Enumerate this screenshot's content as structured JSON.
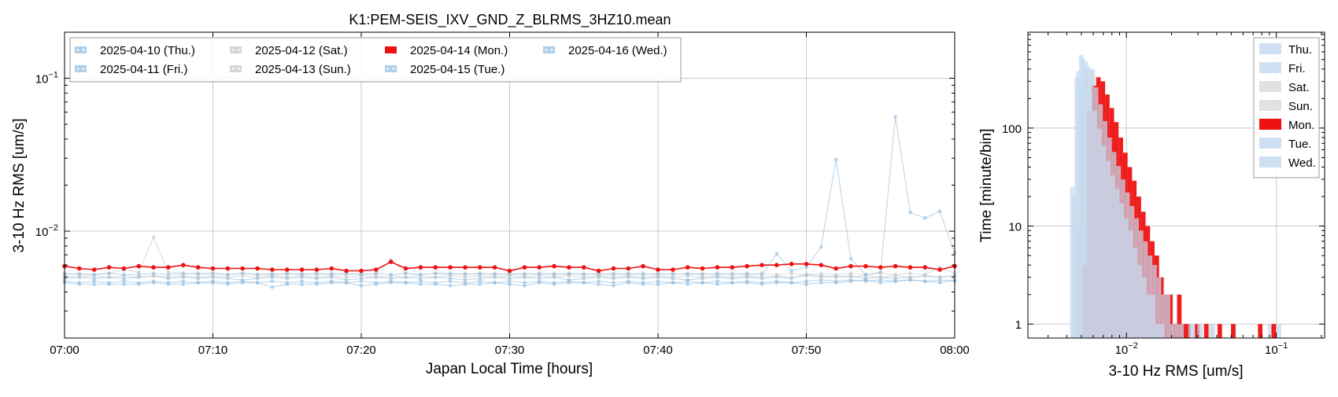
{
  "chart_data": [
    {
      "type": "line",
      "title": "K1:PEM-SEIS_IXV_GND_Z_BLRMS_3HZ10.mean",
      "xlabel": "Japan Local Time [hours]",
      "ylabel": "3-10 Hz RMS [um/s]",
      "yscale": "log",
      "xlim": [
        "07:00",
        "08:00"
      ],
      "ylim": [
        0.002,
        0.2
      ],
      "x_ticks": [
        "07:00",
        "07:10",
        "07:20",
        "07:30",
        "07:40",
        "07:50",
        "08:00"
      ],
      "y_ticks": [
        {
          "value": 0.1,
          "base": "10",
          "exp": "−1"
        },
        {
          "value": 0.01,
          "base": "10",
          "exp": "−2"
        }
      ],
      "grid": true,
      "legend": {
        "placement": "top-left",
        "columns": 4
      },
      "x_minutes": [
        0,
        1,
        2,
        3,
        4,
        5,
        6,
        7,
        8,
        9,
        10,
        11,
        12,
        13,
        14,
        15,
        16,
        17,
        18,
        19,
        20,
        21,
        22,
        23,
        24,
        25,
        26,
        27,
        28,
        29,
        30,
        31,
        32,
        33,
        34,
        35,
        36,
        37,
        38,
        39,
        40,
        41,
        42,
        43,
        44,
        45,
        46,
        47,
        48,
        49,
        50,
        51,
        52,
        53,
        54,
        55,
        56,
        57,
        58,
        59,
        60
      ],
      "series": [
        {
          "name": "2025-04-10 (Thu.)",
          "color": "#8fb9dc",
          "emphasis": false,
          "values": [
            0.0049,
            0.005,
            0.0049,
            0.005,
            0.0049,
            0.005,
            0.0051,
            0.0049,
            0.005,
            0.0049,
            0.005,
            0.0049,
            0.0048,
            0.0049,
            0.005,
            0.0049,
            0.005,
            0.0049,
            0.005,
            0.0048,
            0.0049,
            0.005,
            0.0049,
            0.005,
            0.0049,
            0.005,
            0.0049,
            0.0048,
            0.0049,
            0.005,
            0.0049,
            0.005,
            0.0049,
            0.005,
            0.0048,
            0.0049,
            0.005,
            0.0049,
            0.005,
            0.0049,
            0.005,
            0.0049,
            0.0048,
            0.0049,
            0.005,
            0.0049,
            0.005,
            0.0049,
            0.005,
            0.0049,
            0.0052,
            0.0051,
            0.005,
            0.0051,
            0.0049,
            0.005,
            0.0049,
            0.005,
            0.0051,
            0.005,
            0.0051
          ]
        },
        {
          "name": "2025-04-11 (Fri.)",
          "color": "#8fb9dc",
          "emphasis": false,
          "values": [
            0.0047,
            0.0046,
            0.0047,
            0.0046,
            0.0047,
            0.0046,
            0.0047,
            0.0046,
            0.0047,
            0.0046,
            0.0047,
            0.0046,
            0.0047,
            0.0046,
            0.0047,
            0.0046,
            0.0047,
            0.0046,
            0.0047,
            0.0046,
            0.0047,
            0.0046,
            0.0047,
            0.0046,
            0.0047,
            0.0046,
            0.0047,
            0.0046,
            0.0047,
            0.0046,
            0.0047,
            0.0046,
            0.0047,
            0.0046,
            0.0047,
            0.0046,
            0.0047,
            0.0046,
            0.0047,
            0.0046,
            0.0047,
            0.0046,
            0.0047,
            0.0046,
            0.0047,
            0.0046,
            0.0047,
            0.0046,
            0.0047,
            0.0046,
            0.0047,
            0.0048,
            0.0047,
            0.0048,
            0.0047,
            0.0048,
            0.0047,
            0.0048,
            0.0047,
            0.0048,
            0.0047
          ]
        },
        {
          "name": "2025-04-12 (Sat.)",
          "color": "#c4c4c4",
          "emphasis": false,
          "values": [
            0.0052,
            0.0053,
            0.0052,
            0.0053,
            0.0056,
            0.0054,
            0.0091,
            0.0054,
            0.0053,
            0.0052,
            0.0053,
            0.0052,
            0.0053,
            0.0052,
            0.0053,
            0.0052,
            0.0053,
            0.0052,
            0.0053,
            0.0052,
            0.0053,
            0.0052,
            0.0065,
            0.0053,
            0.0052,
            0.0053,
            0.0052,
            0.0053,
            0.0052,
            0.0053,
            0.0052,
            0.0053,
            0.0052,
            0.0053,
            0.0052,
            0.0053,
            0.0052,
            0.0053,
            0.0052,
            0.0053,
            0.0052,
            0.0053,
            0.0052,
            0.0053,
            0.0052,
            0.0053,
            0.0052,
            0.0053,
            0.0052,
            0.0053,
            0.0052,
            0.0053,
            0.0052,
            0.0053,
            0.0052,
            0.0053,
            0.0052,
            0.0053,
            0.0052,
            0.0058,
            0.0053
          ]
        },
        {
          "name": "2025-04-13 (Sun.)",
          "color": "#c4c4c4",
          "emphasis": false,
          "values": [
            0.0051,
            0.005,
            0.0051,
            0.005,
            0.0051,
            0.005,
            0.0051,
            0.005,
            0.0051,
            0.005,
            0.0051,
            0.005,
            0.0051,
            0.005,
            0.0051,
            0.005,
            0.0051,
            0.005,
            0.0051,
            0.005,
            0.0051,
            0.005,
            0.0051,
            0.005,
            0.0051,
            0.005,
            0.0051,
            0.005,
            0.0051,
            0.005,
            0.0051,
            0.005,
            0.0051,
            0.005,
            0.0051,
            0.005,
            0.0051,
            0.005,
            0.0051,
            0.005,
            0.0051,
            0.005,
            0.0051,
            0.005,
            0.0051,
            0.005,
            0.0051,
            0.005,
            0.0051,
            0.005,
            0.0051,
            0.005,
            0.0051,
            0.005,
            0.0051,
            0.005,
            0.0051,
            0.005,
            0.0051,
            0.005,
            0.0051
          ]
        },
        {
          "name": "2025-04-14 (Mon.)",
          "color": "#ee1111",
          "emphasis": true,
          "values": [
            0.0059,
            0.0057,
            0.0056,
            0.0058,
            0.0057,
            0.0059,
            0.0058,
            0.0058,
            0.006,
            0.0058,
            0.0057,
            0.0057,
            0.0057,
            0.0057,
            0.0056,
            0.0056,
            0.0056,
            0.0056,
            0.0057,
            0.0055,
            0.0055,
            0.0056,
            0.0063,
            0.0057,
            0.0058,
            0.0058,
            0.0058,
            0.0058,
            0.0058,
            0.0058,
            0.0055,
            0.0058,
            0.0058,
            0.0059,
            0.0058,
            0.0058,
            0.0055,
            0.0057,
            0.0057,
            0.0059,
            0.0056,
            0.0056,
            0.0058,
            0.0057,
            0.0058,
            0.0058,
            0.0059,
            0.006,
            0.006,
            0.0061,
            0.0061,
            0.006,
            0.0057,
            0.0059,
            0.0059,
            0.0058,
            0.0059,
            0.0058,
            0.0058,
            0.0056,
            0.0059
          ]
        },
        {
          "name": "2025-04-15 (Tue.)",
          "color": "#8fb9dc",
          "emphasis": false,
          "values": [
            0.0046,
            0.0045,
            0.0045,
            0.0045,
            0.0045,
            0.0045,
            0.0046,
            0.0045,
            0.0045,
            0.0046,
            0.0046,
            0.0045,
            0.0046,
            0.0046,
            0.0043,
            0.0045,
            0.0045,
            0.0045,
            0.0046,
            0.0046,
            0.0044,
            0.0045,
            0.0046,
            0.0046,
            0.0045,
            0.0045,
            0.0044,
            0.0045,
            0.0045,
            0.0046,
            0.0045,
            0.0044,
            0.0046,
            0.0045,
            0.0046,
            0.0046,
            0.0045,
            0.0044,
            0.0046,
            0.0045,
            0.0045,
            0.0046,
            0.0045,
            0.0046,
            0.0045,
            0.0046,
            0.0046,
            0.0045,
            0.0046,
            0.0046,
            0.0045,
            0.0046,
            0.0046,
            0.0047,
            0.0048,
            0.0046,
            0.0047,
            0.0048,
            0.0047,
            0.0046,
            0.0048
          ]
        },
        {
          "name": "2025-04-16 (Wed.)",
          "color": "#8fb9dc",
          "emphasis": false,
          "values": [
            0.0053,
            0.0052,
            0.0052,
            0.0053,
            0.0052,
            0.0052,
            0.0053,
            0.0052,
            0.0053,
            0.0053,
            0.0053,
            0.0052,
            0.0053,
            0.0052,
            0.0052,
            0.0053,
            0.0052,
            0.0053,
            0.0052,
            0.0053,
            0.0052,
            0.0053,
            0.0052,
            0.0053,
            0.0052,
            0.0053,
            0.0053,
            0.0052,
            0.0053,
            0.0052,
            0.0053,
            0.0052,
            0.0053,
            0.0052,
            0.0053,
            0.0052,
            0.0053,
            0.0052,
            0.0053,
            0.0052,
            0.0053,
            0.0052,
            0.0053,
            0.0052,
            0.0053,
            0.0052,
            0.0053,
            0.0052,
            0.0071,
            0.0055,
            0.0058,
            0.0079,
            0.0295,
            0.0066,
            0.0052,
            0.0054,
            0.056,
            0.0133,
            0.0122,
            0.0135,
            0.0072
          ]
        }
      ]
    },
    {
      "type": "histogram",
      "title": "",
      "xlabel": "3-10 Hz RMS [um/s]",
      "ylabel": "Time [minute/bin]",
      "xscale": "log",
      "yscale": "log",
      "xlim": [
        0.0022,
        0.21
      ],
      "ylim": [
        0.72,
        950
      ],
      "x_ticks": [
        {
          "value": 0.01,
          "base": "10",
          "exp": "−2"
        },
        {
          "value": 0.1,
          "base": "10",
          "exp": "−1"
        }
      ],
      "y_ticks": [
        {
          "value": 1,
          "label": "1"
        },
        {
          "value": 10,
          "label": "10"
        },
        {
          "value": 100,
          "label": "100"
        }
      ],
      "grid": true,
      "legend": {
        "placement": "top-right"
      },
      "bin_width_log10": 0.03,
      "series": [
        {
          "name": "Thu.",
          "color": "#c6dbee",
          "bin_start": 0.0045,
          "counts": [
            12,
            270,
            480,
            410,
            260,
            170,
            118,
            82,
            56,
            40,
            29,
            21,
            16,
            12,
            9,
            7,
            5,
            4,
            3,
            3,
            2,
            2,
            1,
            1,
            1,
            0,
            1,
            0,
            0,
            0,
            1,
            0,
            0,
            0,
            0,
            1,
            0,
            0,
            0,
            0,
            0,
            0,
            0,
            1,
            0,
            1
          ]
        },
        {
          "name": "Fri.",
          "color": "#c6dbee",
          "bin_start": 0.0043,
          "counts": [
            20,
            380,
            520,
            350,
            210,
            140,
            92,
            63,
            45,
            32,
            23,
            17,
            13,
            10,
            7,
            5,
            4,
            3,
            2,
            2,
            1,
            1,
            1,
            0,
            1,
            0,
            0,
            1
          ]
        },
        {
          "name": "Sat.",
          "color": "#dcdcdc",
          "bin_start": 0.0047,
          "counts": [
            8,
            150,
            330,
            400,
            280,
            190,
            125,
            86,
            60,
            43,
            31,
            22,
            16,
            11,
            8,
            6,
            4,
            3,
            2,
            2,
            1,
            1,
            1,
            0,
            1,
            0,
            0,
            1,
            0,
            1
          ]
        },
        {
          "name": "Sun.",
          "color": "#dcdcdc",
          "bin_start": 0.0046,
          "counts": [
            14,
            210,
            370,
            340,
            230,
            160,
            105,
            72,
            51,
            36,
            26,
            19,
            14,
            10,
            7,
            5,
            4,
            3,
            2,
            1,
            1,
            1
          ]
        },
        {
          "name": "Mon.",
          "color": "#ee1111",
          "bin_start": 0.0051,
          "counts": [
            4,
            150,
            270,
            330,
            300,
            220,
            160,
            115,
            80,
            56,
            40,
            29,
            20,
            14,
            10,
            7,
            5,
            3,
            2,
            2,
            1,
            2,
            1,
            1,
            0,
            1,
            0,
            1,
            0,
            0,
            1,
            0,
            0,
            1,
            0,
            0,
            0,
            0,
            0,
            1,
            0,
            0,
            1
          ]
        },
        {
          "name": "Tue.",
          "color": "#c6dbee",
          "bin_start": 0.0042,
          "counts": [
            25,
            330,
            560,
            380,
            230,
            150,
            98,
            66,
            46,
            33,
            24,
            17,
            12,
            9,
            6,
            4,
            3,
            2,
            2,
            1,
            1
          ]
        },
        {
          "name": "Wed.",
          "color": "#c6dbee",
          "bin_start": 0.0046,
          "counts": [
            10,
            240,
            430,
            390,
            260,
            175,
            118,
            80,
            57,
            41,
            30,
            22,
            16,
            12,
            9,
            7,
            5,
            4,
            3,
            2,
            2,
            1,
            1,
            1,
            0,
            1,
            0,
            1,
            0,
            0,
            1
          ]
        }
      ]
    }
  ]
}
